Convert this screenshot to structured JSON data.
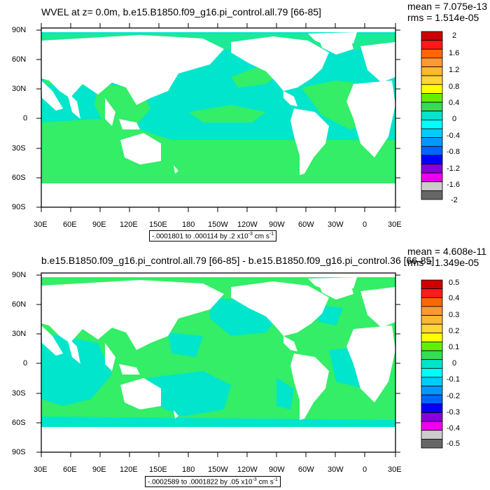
{
  "colors": {
    "ocean_cyan": "#00e5cc",
    "ocean_green": "#33ee66",
    "land": "#ffffff"
  },
  "lat_labels": [
    "90N",
    "60N",
    "30N",
    "0",
    "30S",
    "60S",
    "90S"
  ],
  "lon_labels": [
    "30E",
    "60E",
    "90E",
    "120E",
    "150E",
    "180",
    "150W",
    "120W",
    "90W",
    "60W",
    "30W",
    "0",
    "30E"
  ],
  "colorbar_colors": [
    "#cc0000",
    "#ff1a1a",
    "#ff6600",
    "#ff9933",
    "#ffb833",
    "#ffd633",
    "#ffff00",
    "#66ee00",
    "#33dd55",
    "#00e5cc",
    "#00ffff",
    "#00ccff",
    "#0099ff",
    "#0066ff",
    "#0000ff",
    "#8800dd",
    "#ee00ee",
    "#cccccc",
    "#666666"
  ],
  "panel1": {
    "title": "WVEL at z=   0.0m, b.e15.B1850.f09_g16.pi_control.all.79 [66-85]",
    "mean": "mean = 7.075e-13",
    "rms": "rms = 1.514e-05",
    "range_prefix": "-.0001801 to .000114 by .2 x10",
    "range_exp": "-3",
    "range_unit": " cm s",
    "range_unit_exp": "-1",
    "colorbar_labels": [
      "2",
      "1.6",
      "1.2",
      "0.8",
      "0.4",
      "0",
      "-0.4",
      "-0.8",
      "-1.2",
      "-1.6",
      "-2"
    ]
  },
  "panel2": {
    "title": "b.e15.B1850.f09_g16.pi_control.all.79 [66-85] - b.e15.B1850.f09_g16.pi_control.36 [66-85]",
    "mean": "mean = 4.608e-11",
    "rms": "rms = 1.349e-05",
    "range_prefix": "-.0002589 to .0001822 by .05 x10",
    "range_exp": "-3",
    "range_unit": " cm s",
    "range_unit_exp": "-1",
    "colorbar_labels": [
      "0.5",
      "0.4",
      "0.3",
      "0.2",
      "0.1",
      "0",
      "-0.1",
      "-0.2",
      "-0.3",
      "-0.4",
      "-0.5"
    ]
  }
}
